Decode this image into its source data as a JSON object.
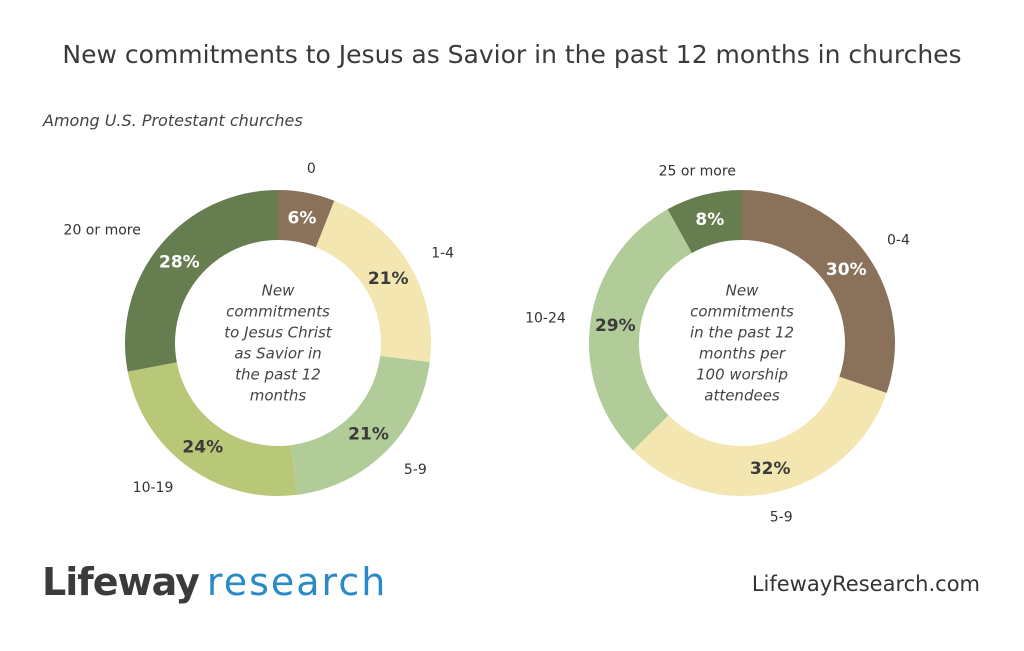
{
  "header": {
    "title": "New commitments to Jesus as Savior in the past 12 months in churches",
    "subtitle": "Among U.S. Protestant churches"
  },
  "footer": {
    "logo_word1": "Lifeway",
    "logo_word2": "research",
    "website": "LifewayResearch.com"
  },
  "chart_data": [
    {
      "type": "pie",
      "style": "donut",
      "center_label": [
        "New",
        "commitments",
        "to Jesus Christ",
        "as Savior in",
        "the past 12",
        "months"
      ],
      "categories": [
        "0",
        "1-4",
        "5-9",
        "10-19",
        "20 or more"
      ],
      "values": [
        6,
        21,
        21,
        24,
        28
      ],
      "colors": [
        "#8a7159",
        "#f3e6b1",
        "#b1cc99",
        "#b9c878",
        "#657d4f"
      ]
    },
    {
      "type": "pie",
      "style": "donut",
      "center_label": [
        "New",
        "commitments",
        "in the past 12",
        "months per",
        "100 worship",
        "attendees"
      ],
      "categories": [
        "0-4",
        "5-9",
        "10-24",
        "25 or more"
      ],
      "values": [
        30,
        32,
        29,
        8
      ],
      "colors": [
        "#8a7159",
        "#f3e6b1",
        "#b1cc99",
        "#657d4f"
      ]
    }
  ]
}
